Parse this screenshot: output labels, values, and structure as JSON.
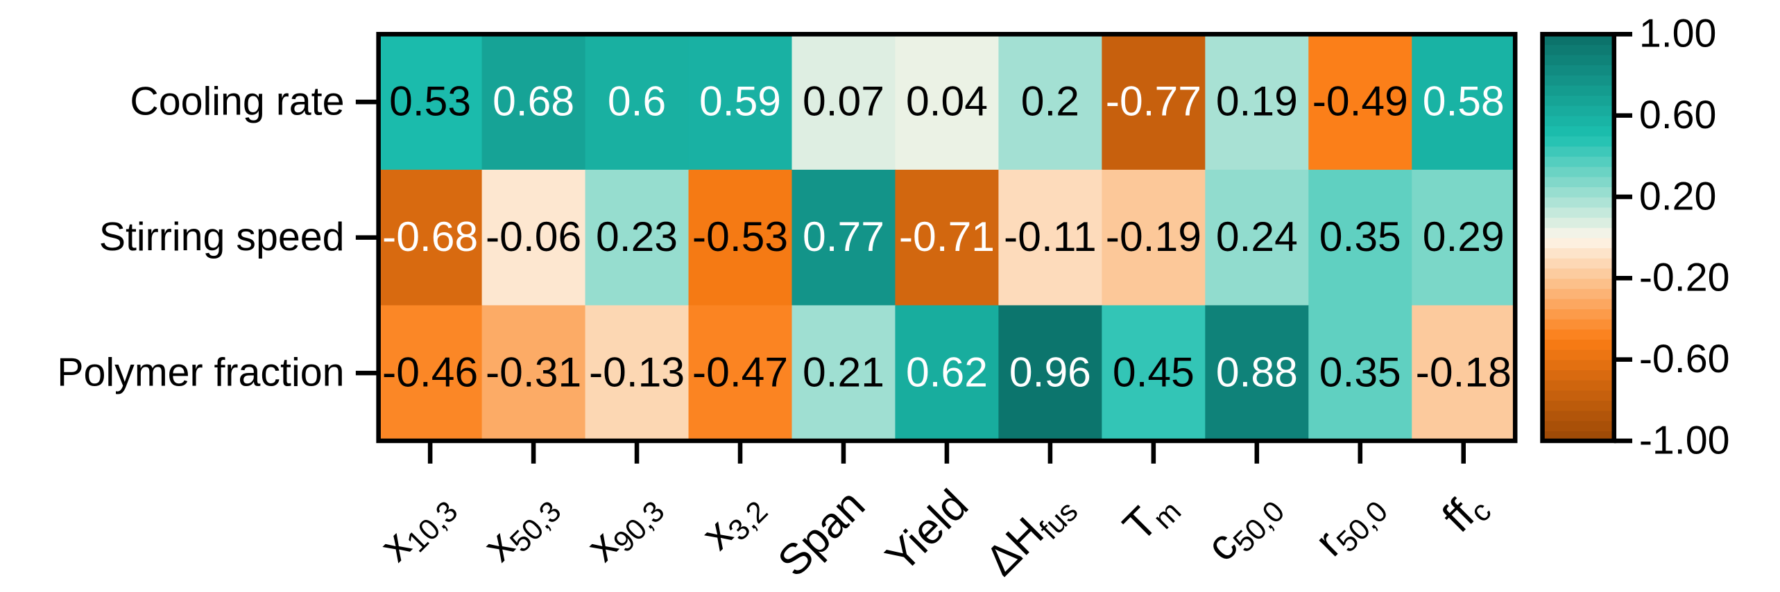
{
  "chart_data": {
    "type": "heatmap",
    "rows": [
      "Cooling rate",
      "Stirring speed",
      "Polymer fraction"
    ],
    "columns": [
      {
        "text": "x",
        "sub": "10,3"
      },
      {
        "text": "x",
        "sub": "50,3"
      },
      {
        "text": "x",
        "sub": "90,3"
      },
      {
        "text": "x",
        "sub": "3,2"
      },
      {
        "text": "Span"
      },
      {
        "text": "Yield"
      },
      {
        "text": "ΔH",
        "sub": "fus"
      },
      {
        "text": "T",
        "sub": "m"
      },
      {
        "text": "c",
        "sub": "50,0"
      },
      {
        "text": "r",
        "sub": "50,0"
      },
      {
        "text": "ff",
        "sub": "c"
      }
    ],
    "values": [
      [
        0.53,
        0.68,
        0.6,
        0.59,
        0.07,
        0.04,
        0.2,
        -0.77,
        0.19,
        -0.49,
        0.58
      ],
      [
        -0.68,
        -0.06,
        0.23,
        -0.53,
        0.77,
        -0.71,
        -0.11,
        -0.19,
        0.24,
        0.35,
        0.29
      ],
      [
        -0.46,
        -0.31,
        -0.13,
        -0.47,
        0.21,
        0.62,
        0.96,
        0.45,
        0.88,
        0.35,
        -0.18
      ]
    ],
    "zlim": [
      -1,
      1
    ],
    "zticks": [
      {
        "value": 1,
        "label": "1.00"
      },
      {
        "value": 0.6,
        "label": "0.60"
      },
      {
        "value": 0.2,
        "label": "0.20"
      },
      {
        "value": -0.2,
        "label": "-0.20"
      },
      {
        "value": -0.6,
        "label": "-0.60"
      },
      {
        "value": -1,
        "label": "-1.00"
      }
    ],
    "colormap": [
      {
        "value": -1,
        "color": "#9a4806"
      },
      {
        "value": -0.5,
        "color": "#fb7d15"
      },
      {
        "value": 0,
        "color": "#fdf6ea"
      },
      {
        "value": 0.5,
        "color": "#1cc0b0"
      },
      {
        "value": 1,
        "color": "#0b6f67"
      }
    ]
  }
}
